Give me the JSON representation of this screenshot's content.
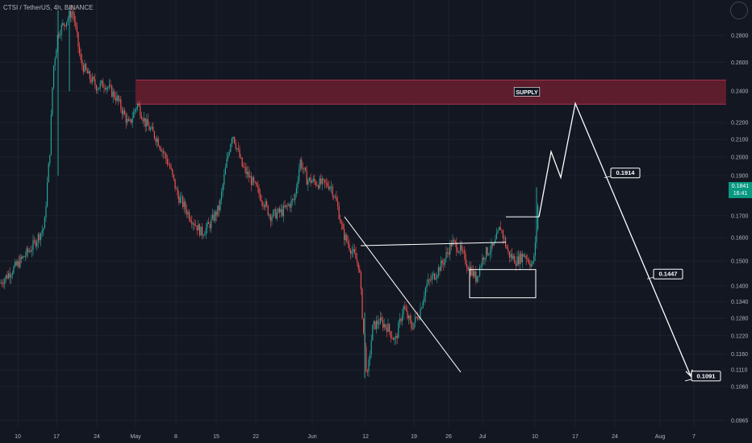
{
  "header": {
    "title": "CTSI / TetherUS, 4h, BINANCE"
  },
  "last_price": {
    "value": "0.1841",
    "countdown": "16:41"
  },
  "colors": {
    "background": "#131722",
    "up": "#26a69a",
    "down": "#ef5350",
    "supply_zone": "#6b1f2e",
    "drawing": "#ffffff",
    "grid": "#1e222d",
    "axis_text": "#b2b5be"
  },
  "chart_data": {
    "type": "candlestick",
    "log_scale": true,
    "grid": true,
    "x_ticks": [
      "10",
      "17",
      "24",
      "May",
      "8",
      "15",
      "22",
      "Jun",
      "12",
      "19",
      "26",
      "Jul",
      "10",
      "17",
      "24",
      "Aug",
      "7"
    ],
    "y_ticks": [
      "0.2800",
      "0.2600",
      "0.2400",
      "0.2200",
      "0.2100",
      "0.2000",
      "0.1900",
      "0.1700",
      "0.1600",
      "0.1500",
      "0.1400",
      "0.1340",
      "0.1280",
      "0.1220",
      "0.1160",
      "0.1110",
      "0.1060",
      "0.0965"
    ],
    "ylim": [
      0.0945,
      0.3
    ],
    "price_path": [
      [
        0,
        0.141
      ],
      [
        20,
        0.148
      ],
      [
        40,
        0.156
      ],
      [
        55,
        0.165
      ],
      [
        62,
        0.205
      ],
      [
        66,
        0.255
      ],
      [
        72,
        0.282
      ],
      [
        80,
        0.29
      ],
      [
        90,
        0.3
      ],
      [
        100,
        0.26
      ],
      [
        110,
        0.25
      ],
      [
        120,
        0.243
      ],
      [
        130,
        0.245
      ],
      [
        145,
        0.235
      ],
      [
        160,
        0.218
      ],
      [
        170,
        0.232
      ],
      [
        180,
        0.22
      ],
      [
        195,
        0.21
      ],
      [
        210,
        0.195
      ],
      [
        220,
        0.18
      ],
      [
        235,
        0.17
      ],
      [
        250,
        0.162
      ],
      [
        260,
        0.166
      ],
      [
        272,
        0.174
      ],
      [
        282,
        0.2
      ],
      [
        288,
        0.214
      ],
      [
        300,
        0.195
      ],
      [
        315,
        0.185
      ],
      [
        325,
        0.178
      ],
      [
        335,
        0.17
      ],
      [
        350,
        0.172
      ],
      [
        365,
        0.178
      ],
      [
        372,
        0.198
      ],
      [
        380,
        0.188
      ],
      [
        395,
        0.186
      ],
      [
        410,
        0.185
      ],
      [
        418,
        0.175
      ],
      [
        425,
        0.162
      ],
      [
        435,
        0.155
      ],
      [
        445,
        0.148
      ],
      [
        450,
        0.125
      ],
      [
        455,
        0.108
      ],
      [
        462,
        0.125
      ],
      [
        470,
        0.127
      ],
      [
        480,
        0.125
      ],
      [
        490,
        0.12
      ],
      [
        500,
        0.132
      ],
      [
        510,
        0.125
      ],
      [
        520,
        0.13
      ],
      [
        528,
        0.14
      ],
      [
        540,
        0.145
      ],
      [
        550,
        0.15
      ],
      [
        560,
        0.158
      ],
      [
        570,
        0.155
      ],
      [
        580,
        0.148
      ],
      [
        590,
        0.143
      ],
      [
        600,
        0.153
      ],
      [
        612,
        0.156
      ],
      [
        620,
        0.165
      ],
      [
        630,
        0.153
      ],
      [
        640,
        0.15
      ],
      [
        650,
        0.153
      ],
      [
        660,
        0.148
      ],
      [
        664,
        0.158
      ],
      [
        668,
        0.184
      ]
    ],
    "annotations": [
      {
        "type": "zone",
        "label": "SUPPLY",
        "from_x": 168,
        "to_x": 900,
        "y_high": 0.2475,
        "y_low": 0.2315
      },
      {
        "type": "projection",
        "points": [
          [
            668,
            0.1695
          ],
          [
            683,
            0.203
          ],
          [
            695,
            0.189
          ],
          [
            713,
            0.232
          ],
          [
            856,
            0.1091
          ]
        ]
      },
      {
        "type": "label",
        "text": "0.1914",
        "x": 757,
        "y": 0.1914
      },
      {
        "type": "label",
        "text": "0.1447",
        "x": 810,
        "y": 0.1447
      },
      {
        "type": "label",
        "text": "0.1091",
        "x": 857,
        "y": 0.1091
      },
      {
        "type": "trendline",
        "from": [
          427,
          0.1695
        ],
        "to": [
          571,
          0.1103
        ]
      },
      {
        "type": "trendline",
        "from": [
          447,
          0.1565
        ],
        "to": [
          627,
          0.158
        ]
      },
      {
        "type": "trendline",
        "from": [
          627,
          0.1695
        ],
        "to": [
          668,
          0.1695
        ]
      },
      {
        "type": "box",
        "x1": 582,
        "x2": 664,
        "y_high": 0.1465,
        "y_low": 0.1355
      }
    ]
  }
}
